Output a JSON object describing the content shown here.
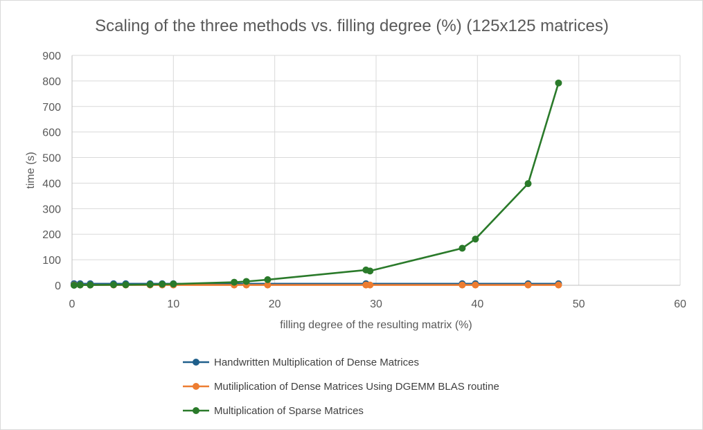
{
  "chart_data": {
    "type": "scatter",
    "title": "Scaling of the three methods vs. filling degree (%) (125x125 matrices)",
    "xlabel": "filling degree of the resulting matrix (%)",
    "ylabel": "time (s)",
    "xlim": [
      0,
      60
    ],
    "ylim": [
      0,
      900
    ],
    "x_ticks": [
      "0",
      "10",
      "20",
      "30",
      "40",
      "50",
      "60"
    ],
    "y_ticks": [
      "0",
      "100",
      "200",
      "300",
      "400",
      "500",
      "600",
      "700",
      "800",
      "900"
    ],
    "grid": true,
    "legend_position": "bottom",
    "series": [
      {
        "name": "Handwritten Multiplication of Dense Matrices",
        "color": "#1f5f8b",
        "points": [
          [
            0.2,
            6
          ],
          [
            0.8,
            6
          ],
          [
            1.8,
            6
          ],
          [
            4.1,
            6
          ],
          [
            5.3,
            6
          ],
          [
            7.7,
            6
          ],
          [
            8.9,
            6
          ],
          [
            10.0,
            6
          ],
          [
            29.0,
            6
          ],
          [
            38.5,
            6
          ],
          [
            39.8,
            6
          ],
          [
            45.0,
            6
          ],
          [
            48.0,
            6
          ]
        ]
      },
      {
        "name": "Mutiliplication of Dense Matrices Using DGEMM BLAS routine",
        "color": "#ed7d31",
        "points": [
          [
            0.2,
            1
          ],
          [
            0.8,
            1
          ],
          [
            1.8,
            1
          ],
          [
            4.1,
            1
          ],
          [
            5.3,
            1
          ],
          [
            7.7,
            1
          ],
          [
            8.9,
            1
          ],
          [
            10.0,
            1
          ],
          [
            16.0,
            1
          ],
          [
            17.2,
            1
          ],
          [
            19.3,
            1
          ],
          [
            29.0,
            1
          ],
          [
            29.4,
            1
          ],
          [
            38.5,
            1
          ],
          [
            39.8,
            1
          ],
          [
            45.0,
            1
          ],
          [
            48.0,
            1
          ]
        ]
      },
      {
        "name": "Multiplication of Sparse Matrices",
        "color": "#2a7a2a",
        "points": [
          [
            0.2,
            0
          ],
          [
            0.8,
            1
          ],
          [
            1.8,
            1
          ],
          [
            4.1,
            2
          ],
          [
            5.3,
            2
          ],
          [
            7.7,
            3
          ],
          [
            8.9,
            4
          ],
          [
            10.0,
            5
          ],
          [
            16.0,
            12
          ],
          [
            17.2,
            15
          ],
          [
            19.3,
            22
          ],
          [
            29.0,
            60
          ],
          [
            29.4,
            56
          ],
          [
            38.5,
            145
          ],
          [
            39.8,
            181
          ],
          [
            45.0,
            398
          ],
          [
            48.0,
            792
          ]
        ]
      }
    ]
  }
}
